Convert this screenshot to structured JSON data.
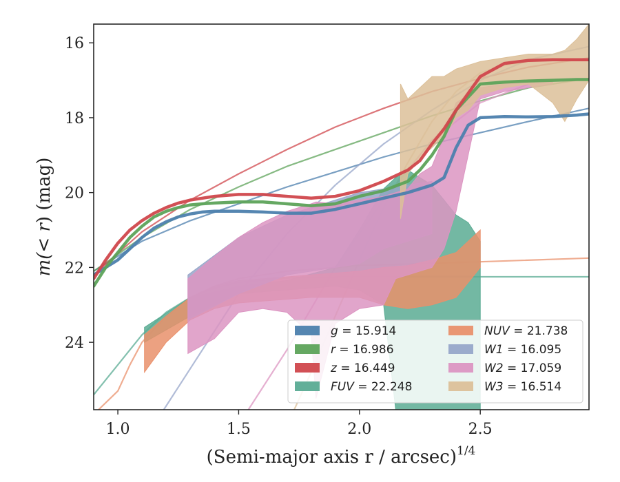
{
  "chart_data": {
    "type": "line",
    "xlabel": "(Semi-major axis r / arcsec)",
    "xlabel_exponent": "1/4",
    "ylabel_prefix": "m(",
    "ylabel_lt": "< ",
    "ylabel_r": "r",
    "ylabel_suffix": ") (mag)",
    "xlim": [
      0.9,
      2.95
    ],
    "ylim": [
      25.8,
      15.5
    ],
    "y_inverted": true,
    "xticks": [
      1.0,
      1.5,
      2.0,
      2.5
    ],
    "xtick_labels": [
      "1.0",
      "1.5",
      "2.0",
      "2.5"
    ],
    "yticks": [
      16,
      18,
      20,
      22,
      24
    ],
    "ytick_labels": [
      "16",
      "18",
      "20",
      "22",
      "24"
    ],
    "grid": false,
    "legend_position": "lower-right",
    "series": [
      {
        "band": "g",
        "value": "15.914",
        "color": "#4c7fad",
        "kind": "line",
        "x": [
          0.9,
          0.95,
          1.0,
          1.05,
          1.1,
          1.15,
          1.2,
          1.25,
          1.3,
          1.35,
          1.4,
          1.5,
          1.6,
          1.7,
          1.8,
          1.9,
          2.0,
          2.1,
          2.2,
          2.3,
          2.35,
          2.4,
          2.45,
          2.5,
          2.6,
          2.7,
          2.8,
          2.9,
          2.95
        ],
        "y": [
          22.2,
          22.0,
          21.8,
          21.5,
          21.2,
          20.95,
          20.78,
          20.65,
          20.57,
          20.52,
          20.5,
          20.5,
          20.52,
          20.55,
          20.55,
          20.45,
          20.3,
          20.15,
          20.0,
          19.8,
          19.6,
          18.8,
          18.2,
          18.0,
          17.97,
          17.98,
          17.97,
          17.93,
          17.9
        ],
        "model_x": [
          0.9,
          1.1,
          1.3,
          1.5,
          1.7,
          1.9,
          2.1,
          2.3,
          2.5,
          2.7,
          2.95
        ],
        "model_y": [
          22.1,
          21.3,
          20.75,
          20.3,
          19.85,
          19.45,
          19.05,
          18.7,
          18.4,
          18.1,
          17.75
        ]
      },
      {
        "band": "r",
        "value": "16.986",
        "color": "#5da35a",
        "kind": "line",
        "x": [
          0.9,
          0.95,
          1.0,
          1.05,
          1.1,
          1.15,
          1.2,
          1.25,
          1.3,
          1.35,
          1.4,
          1.5,
          1.6,
          1.7,
          1.8,
          1.9,
          2.0,
          2.1,
          2.2,
          2.25,
          2.3,
          2.35,
          2.4,
          2.5,
          2.6,
          2.7,
          2.8,
          2.9,
          2.95
        ],
        "y": [
          22.5,
          22.0,
          21.6,
          21.2,
          20.9,
          20.65,
          20.5,
          20.4,
          20.33,
          20.3,
          20.28,
          20.25,
          20.25,
          20.3,
          20.35,
          20.3,
          20.1,
          19.95,
          19.7,
          19.4,
          19.0,
          18.5,
          17.8,
          17.1,
          17.05,
          17.02,
          17.0,
          16.98,
          16.98
        ],
        "model_x": [
          0.9,
          1.1,
          1.3,
          1.5,
          1.7,
          1.9,
          2.1,
          2.3,
          2.5,
          2.7,
          2.95
        ],
        "model_y": [
          22.1,
          21.2,
          20.45,
          19.85,
          19.3,
          18.85,
          18.4,
          17.95,
          17.55,
          17.2,
          16.95
        ]
      },
      {
        "band": "z",
        "value": "16.449",
        "color": "#d0474c",
        "kind": "line",
        "x": [
          0.9,
          0.95,
          1.0,
          1.05,
          1.1,
          1.15,
          1.2,
          1.25,
          1.3,
          1.35,
          1.4,
          1.5,
          1.6,
          1.7,
          1.8,
          1.9,
          2.0,
          2.1,
          2.2,
          2.25,
          2.3,
          2.35,
          2.4,
          2.5,
          2.6,
          2.7,
          2.8,
          2.9,
          2.95
        ],
        "y": [
          22.3,
          21.8,
          21.35,
          21.0,
          20.75,
          20.55,
          20.4,
          20.28,
          20.2,
          20.15,
          20.1,
          20.05,
          20.05,
          20.1,
          20.15,
          20.1,
          19.95,
          19.7,
          19.4,
          19.15,
          18.7,
          18.3,
          17.8,
          16.9,
          16.55,
          16.47,
          16.45,
          16.45,
          16.45
        ],
        "model_x": [
          0.9,
          1.1,
          1.3,
          1.5,
          1.7,
          1.9,
          2.1,
          2.3,
          2.5,
          2.7,
          2.95
        ],
        "model_y": [
          22.2,
          21.05,
          20.2,
          19.5,
          18.85,
          18.25,
          17.75,
          17.3,
          16.95,
          16.65,
          16.4
        ]
      },
      {
        "band": "FUV",
        "value": "22.248",
        "color": "#5aab93",
        "kind": "band",
        "x": [
          1.11,
          1.3,
          1.5,
          1.7,
          1.9,
          2.0,
          2.1,
          2.15,
          2.2,
          2.3,
          2.4,
          2.45,
          2.5
        ],
        "y_top": [
          23.6,
          22.8,
          22.5,
          22.35,
          22.0,
          21.0,
          19.9,
          19.6,
          19.4,
          19.8,
          20.6,
          20.8,
          21.3
        ],
        "y_bottom": [
          24.0,
          23.3,
          22.7,
          22.6,
          22.5,
          22.6,
          23.0,
          25.8,
          25.8,
          25.8,
          25.8,
          25.8,
          25.8
        ],
        "model_x": [
          0.9,
          1.0,
          1.1,
          1.2,
          1.3,
          1.4,
          1.5,
          1.7,
          2.0,
          2.5,
          2.95
        ],
        "model_y": [
          25.4,
          24.6,
          23.8,
          23.2,
          22.8,
          22.55,
          22.4,
          22.28,
          22.25,
          22.25,
          22.25
        ]
      },
      {
        "band": "NUV",
        "value": "21.738",
        "color": "#e9906b",
        "kind": "band",
        "x": [
          1.11,
          1.2,
          1.3,
          1.4,
          1.5,
          1.6,
          1.7,
          1.8,
          1.9,
          2.0,
          2.1,
          2.2,
          2.3,
          2.4,
          2.5
        ],
        "y_top": [
          23.8,
          23.3,
          22.8,
          22.5,
          22.35,
          22.3,
          22.25,
          22.2,
          22.15,
          22.1,
          22.0,
          21.95,
          21.8,
          21.6,
          21.0
        ],
        "y_bottom": [
          24.8,
          24.0,
          23.4,
          23.1,
          22.95,
          22.9,
          22.85,
          22.8,
          22.8,
          22.8,
          23.0,
          23.1,
          23.0,
          22.8,
          22.0
        ],
        "model_x": [
          0.92,
          1.0,
          1.05,
          1.1,
          1.2,
          1.3,
          1.4,
          1.5,
          1.7,
          2.0,
          2.5,
          2.95
        ],
        "model_y": [
          25.8,
          25.3,
          24.6,
          24.0,
          23.3,
          22.8,
          22.5,
          22.3,
          22.1,
          21.95,
          21.85,
          21.75
        ]
      },
      {
        "band": "W1",
        "value": "16.095",
        "color": "#97a6c9",
        "kind": "band",
        "x": [
          1.29,
          1.5,
          1.7,
          1.9,
          2.0,
          2.1,
          2.2,
          2.3
        ],
        "y_top": [
          22.2,
          21.2,
          20.6,
          20.2,
          20.0,
          19.9,
          19.8,
          19.7
        ],
        "y_bottom": [
          23.4,
          22.7,
          22.2,
          22.0,
          21.9,
          21.5,
          21.3,
          21.1
        ],
        "model_x": [
          1.19,
          1.3,
          1.5,
          1.7,
          1.9,
          2.1,
          2.3,
          2.5,
          2.7,
          2.95
        ],
        "model_y": [
          25.8,
          24.7,
          22.7,
          21.1,
          19.8,
          18.7,
          17.8,
          17.0,
          16.45,
          16.1
        ]
      },
      {
        "band": "W2",
        "value": "17.059",
        "color": "#dc95c2",
        "kind": "band",
        "x": [
          1.29,
          1.4,
          1.5,
          1.6,
          1.7,
          1.8,
          1.82,
          1.9,
          2.0,
          2.1,
          2.15,
          2.2,
          2.25,
          2.3,
          2.35,
          2.4,
          2.5,
          2.6,
          2.7,
          2.8
        ],
        "y_top": [
          22.3,
          21.7,
          21.2,
          20.8,
          20.5,
          20.3,
          20.25,
          20.3,
          20.2,
          20.1,
          20.0,
          19.9,
          19.5,
          19.3,
          18.5,
          17.6,
          17.2,
          17.1,
          17.05,
          17.0
        ],
        "y_bottom": [
          24.3,
          23.9,
          23.2,
          23.1,
          23.2,
          23.8,
          25.5,
          23.5,
          23.1,
          23.0,
          22.3,
          22.2,
          22.1,
          22.0,
          21.5,
          20.5,
          17.5,
          17.3,
          17.2,
          17.1
        ],
        "model_x": [
          1.54,
          1.7,
          1.9,
          2.1,
          2.3,
          2.5,
          2.7,
          2.8
        ],
        "model_y": [
          25.8,
          24.2,
          22.0,
          20.2,
          18.6,
          17.6,
          17.1,
          17.05
        ]
      },
      {
        "band": "W3",
        "value": "16.514",
        "color": "#dcc099",
        "kind": "band",
        "x": [
          2.17,
          2.2,
          2.25,
          2.3,
          2.35,
          2.4,
          2.45,
          2.5,
          2.6,
          2.7,
          2.8,
          2.85,
          2.9,
          2.95
        ],
        "y_top": [
          17.1,
          17.5,
          17.2,
          16.9,
          16.9,
          16.7,
          16.6,
          16.5,
          16.4,
          16.3,
          16.3,
          16.2,
          15.9,
          15.5
        ],
        "y_bottom": [
          20.7,
          19.5,
          19.1,
          18.8,
          18.5,
          18.0,
          17.8,
          17.4,
          17.2,
          17.1,
          17.6,
          18.1,
          17.5,
          17.0
        ],
        "model_x": [
          1.73,
          1.8,
          1.9,
          2.0,
          2.1,
          2.2,
          2.3,
          2.4,
          2.5,
          2.6,
          2.7,
          2.8,
          2.95
        ],
        "model_y": [
          25.8,
          24.8,
          23.3,
          21.8,
          20.4,
          19.2,
          18.1,
          17.3,
          16.8,
          16.6,
          16.5,
          16.47,
          16.45
        ]
      }
    ]
  }
}
